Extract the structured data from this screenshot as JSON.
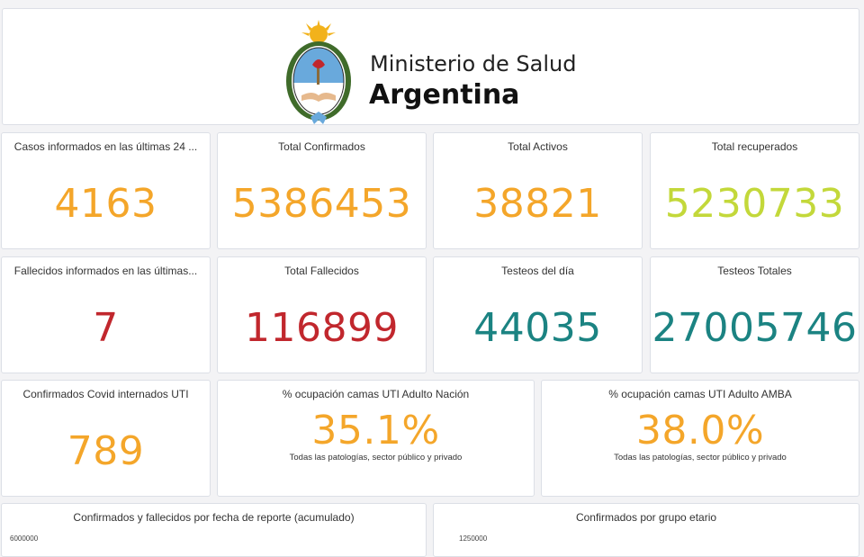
{
  "header": {
    "line1": "Ministerio de Salud",
    "line2": "Argentina",
    "logo_icon": "escudo-argentina-icon"
  },
  "colors": {
    "orange": "#f4a62a",
    "lime": "#c3d83a",
    "red": "#c1272d",
    "teal": "#1b8382"
  },
  "kpis": [
    {
      "title": "Casos informados en las últimas 24 ...",
      "value": "4163",
      "color": "orange"
    },
    {
      "title": "Total Confirmados",
      "value": "5386453",
      "color": "orange"
    },
    {
      "title": "Total Activos",
      "value": "38821",
      "color": "orange"
    },
    {
      "title": "Total recuperados",
      "value": "5230733",
      "color": "lime"
    },
    {
      "title": "Fallecidos informados en las últimas...",
      "value": "7",
      "color": "red"
    },
    {
      "title": "Total Fallecidos",
      "value": "116899",
      "color": "red"
    },
    {
      "title": "Testeos del día",
      "value": "44035",
      "color": "teal"
    },
    {
      "title": "Testeos Totales",
      "value": "27005746",
      "color": "teal"
    },
    {
      "title": "Confirmados Covid internados UTI",
      "value": "789",
      "color": "orange"
    },
    {
      "title": "% ocupación camas UTI Adulto Nación",
      "value": "35.1%",
      "color": "orange",
      "subtitle": "Todas las patologías, sector público y privado"
    },
    {
      "title": "% ocupación camas UTI Adulto AMBA",
      "value": "38.0%",
      "color": "orange",
      "subtitle": "Todas las patologías, sector público y privado"
    }
  ],
  "charts": [
    {
      "title": "Confirmados y fallecidos por fecha de reporte (acumulado)",
      "top_tick": "6000000"
    },
    {
      "title": "Confirmados por grupo etario",
      "top_tick": "1250000"
    }
  ]
}
